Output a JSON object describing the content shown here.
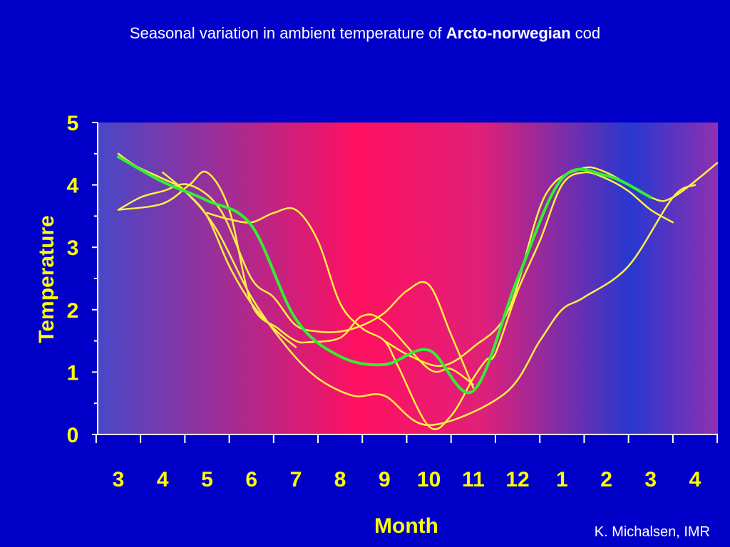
{
  "slide": {
    "title_prefix": "Seasonal variation in ambient temperature of ",
    "title_bold": "Arcto-norwegian",
    "title_suffix": " cod",
    "credit": "K. Michalsen, IMR"
  },
  "colors": {
    "background": "#0000c8",
    "text": "#ffff00",
    "title": "#ffffff",
    "axis": "#ffffff",
    "gradient_left": "#4848c8",
    "gradient_center": "#ff1060",
    "gradient_right_blue": "#2838d0",
    "gradient_far_right": "#9030b0"
  },
  "chart_data": {
    "type": "line",
    "xlabel": "Month",
    "ylabel": "Temperature",
    "x_tick_labels": [
      "3",
      "4",
      "5",
      "6",
      "7",
      "8",
      "9",
      "10",
      "11",
      "12",
      "1",
      "2",
      "3",
      "4"
    ],
    "ylim": [
      0,
      5
    ],
    "y_ticks": [
      0,
      1,
      2,
      3,
      4,
      5
    ],
    "grid": false,
    "series": [
      {
        "color": "#33ee33",
        "x": [
          0,
          1,
          2,
          3,
          4,
          5,
          6,
          7,
          8,
          9,
          10,
          11,
          12
        ],
        "y": [
          4.45,
          4.05,
          3.75,
          3.35,
          1.85,
          1.25,
          1.12,
          1.35,
          0.7,
          2.5,
          4.1,
          4.15,
          3.8
        ]
      },
      {
        "color": "#ffee44",
        "x": [
          0,
          0.4,
          1,
          1.5,
          2.2,
          3,
          3.8,
          4.5,
          5.3,
          6,
          7,
          8.7,
          9.5,
          10,
          10.5,
          11.5,
          12.5,
          13
        ],
        "y": [
          4.5,
          4.3,
          4.1,
          3.9,
          3.3,
          2.2,
          1.4,
          0.9,
          0.62,
          0.62,
          0.15,
          0.65,
          1.5,
          2.0,
          2.2,
          2.7,
          3.8,
          4.0
        ]
      },
      {
        "color": "#ffee44",
        "x": [
          0,
          0.5,
          1,
          1.6,
          2.3,
          3,
          3.5,
          4,
          4.5,
          5,
          5.5,
          6,
          6.5,
          7,
          7.5,
          8
        ],
        "y": [
          3.6,
          3.8,
          3.9,
          4.0,
          3.6,
          2.5,
          2.2,
          1.75,
          1.65,
          1.65,
          1.75,
          1.95,
          2.3,
          2.4,
          1.6,
          0.75
        ]
      },
      {
        "color": "#ffee44",
        "x": [
          0,
          1,
          1.6,
          2,
          2.5,
          3,
          3.6,
          4,
          4.3,
          5,
          5.5,
          6,
          7,
          7.5,
          8
        ],
        "y": [
          3.6,
          3.7,
          4.0,
          4.2,
          3.6,
          2.1,
          1.7,
          1.5,
          1.48,
          1.55,
          1.9,
          1.8,
          1.05,
          1.05,
          0.8
        ]
      },
      {
        "color": "#ffee44",
        "x": [
          1,
          1.5,
          2,
          2.5,
          3,
          3.5,
          4
        ],
        "y": [
          4.2,
          3.9,
          3.5,
          2.7,
          2.1,
          1.7,
          1.4
        ]
      },
      {
        "color": "#ffee44",
        "x": [
          6,
          6.6,
          7.3,
          8,
          8.8,
          9.6,
          10.4,
          11,
          12,
          12.5,
          13.5
        ],
        "y": [
          1.5,
          1.25,
          1.1,
          1.4,
          2.0,
          3.8,
          4.25,
          4.2,
          3.8,
          3.8,
          4.35
        ]
      },
      {
        "color": "#ffee44",
        "x": [
          2,
          2.5,
          3,
          3.5,
          4,
          4.5,
          5,
          5.5,
          6,
          6.3,
          7,
          7.5,
          8,
          8.3,
          8.5,
          9,
          9.5,
          10,
          10.5,
          11,
          11.5,
          12,
          12.5
        ],
        "y": [
          3.55,
          3.45,
          3.4,
          3.55,
          3.6,
          3.1,
          2.1,
          1.7,
          1.5,
          1.1,
          0.13,
          0.3,
          0.9,
          1.2,
          1.3,
          2.3,
          3.1,
          4.0,
          4.2,
          4.1,
          3.9,
          3.6,
          3.4
        ]
      }
    ]
  }
}
